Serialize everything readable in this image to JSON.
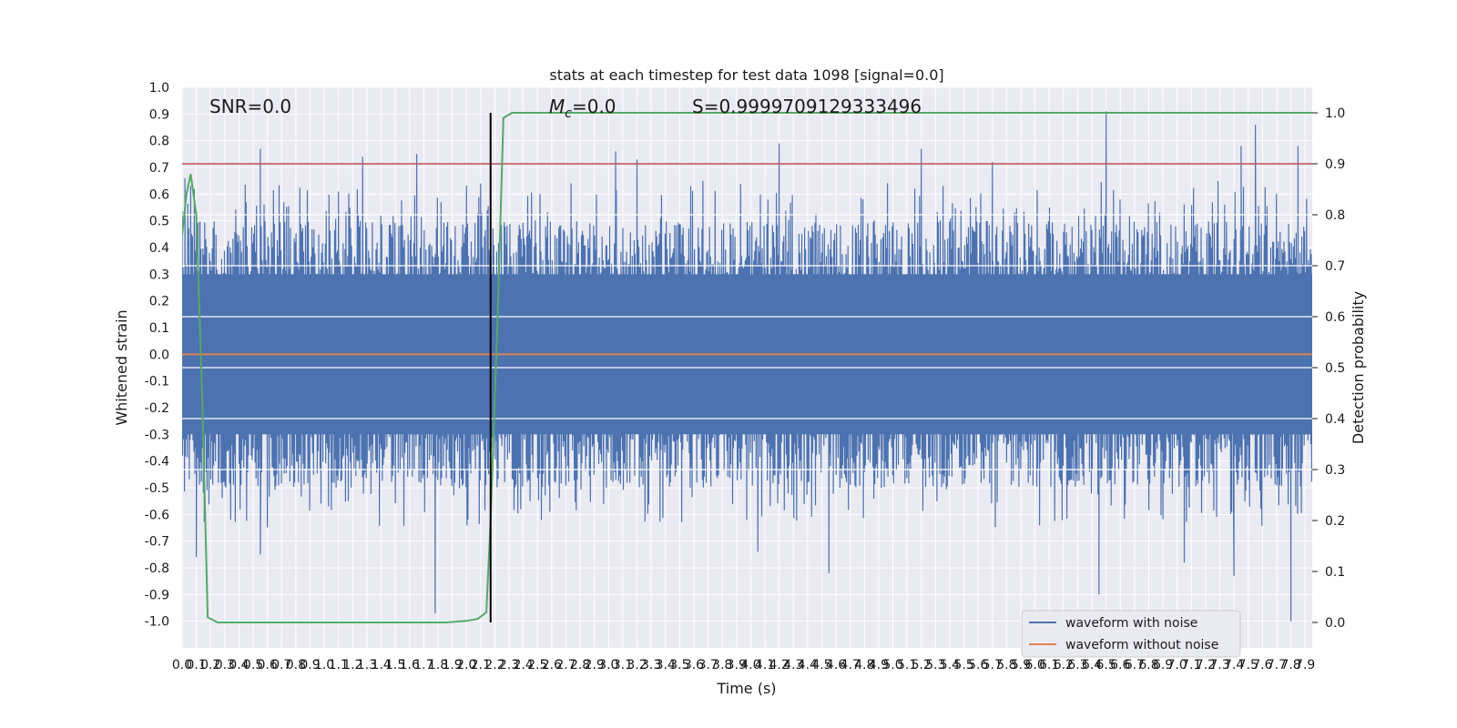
{
  "chart_data": {
    "type": "line",
    "title": "stats at each timestep for test data 1098 [signal=0.0]",
    "xlabel": "Time (s)",
    "ylabel": "Whitened strain",
    "y2label": "Detection probability",
    "xlim": [
      0.0,
      7.95
    ],
    "ylim": [
      -1.1,
      1.0
    ],
    "y2lim": [
      -0.05,
      1.05
    ],
    "x_ticks": [
      "0.0",
      "0.1",
      "0.2",
      "0.3",
      "0.4",
      "0.5",
      "0.6",
      "0.7",
      "0.8",
      "0.9",
      "1.0",
      "1.1",
      "1.2",
      "1.3",
      "1.4",
      "1.5",
      "1.6",
      "1.7",
      "1.8",
      "1.9",
      "2.0",
      "2.1",
      "2.2",
      "2.3",
      "2.4",
      "2.5",
      "2.6",
      "2.7",
      "2.8",
      "2.9",
      "3.0",
      "3.1",
      "3.2",
      "3.3",
      "3.4",
      "3.5",
      "3.6",
      "3.7",
      "3.8",
      "3.9",
      "4.0",
      "4.1",
      "4.2",
      "4.3",
      "4.4",
      "4.5",
      "4.6",
      "4.7",
      "4.8",
      "4.9",
      "5.0",
      "5.1",
      "5.2",
      "5.3",
      "5.4",
      "5.5",
      "5.6",
      "5.7",
      "5.8",
      "5.9",
      "6.0",
      "6.1",
      "6.2",
      "6.3",
      "6.4",
      "6.5",
      "6.6",
      "6.7",
      "6.8",
      "6.9",
      "7.0",
      "7.1",
      "7.2",
      "7.3",
      "7.4",
      "7.5",
      "7.6",
      "7.7",
      "7.8",
      "7.9"
    ],
    "y_ticks": [
      "1.0",
      "0.9",
      "0.8",
      "0.7",
      "0.6",
      "0.5",
      "0.4",
      "0.3",
      "0.2",
      "0.1",
      "0.0",
      "-0.1",
      "-0.2",
      "-0.3",
      "-0.4",
      "-0.5",
      "-0.6",
      "-0.7",
      "-0.8",
      "-0.9",
      "-1.0"
    ],
    "y2_ticks": [
      "1.0",
      "0.9",
      "0.8",
      "0.7",
      "0.6",
      "0.5",
      "0.4",
      "0.3",
      "0.2",
      "0.1",
      "0.0"
    ],
    "grid": true,
    "legend_position": "lower-right",
    "annotations": {
      "snr": "SNR=0.0",
      "mc_symbol": "M",
      "mc_sub": "c",
      "mc_value": "=0.0",
      "s": "S=0.9999709129333496"
    },
    "threshold": {
      "axis": "y2",
      "value": 0.9,
      "color": "#c44e52"
    },
    "marker_line": {
      "x": 2.17,
      "y2_range": [
        0.0,
        1.0
      ],
      "color": "#000000"
    },
    "series": [
      {
        "name": "waveform with noise",
        "axis": "y",
        "color": "#4c72b0",
        "style": "dense-noise",
        "envelope": {
          "typical_upper": 0.45,
          "typical_lower": -0.45
        },
        "peaks": [
          {
            "x": 0.02,
            "y": 0.66
          },
          {
            "x": 0.06,
            "y": 0.63
          },
          {
            "x": 0.55,
            "y": 0.77
          },
          {
            "x": 1.27,
            "y": 0.74
          },
          {
            "x": 1.65,
            "y": 0.75
          },
          {
            "x": 2.1,
            "y": 0.64
          },
          {
            "x": 3.05,
            "y": 0.76
          },
          {
            "x": 3.2,
            "y": 0.73
          },
          {
            "x": 4.2,
            "y": 0.79
          },
          {
            "x": 5.2,
            "y": 0.77
          },
          {
            "x": 5.7,
            "y": 0.72
          },
          {
            "x": 6.5,
            "y": 0.91
          },
          {
            "x": 7.45,
            "y": 0.78
          },
          {
            "x": 7.55,
            "y": 0.86
          },
          {
            "x": 7.85,
            "y": 0.78
          }
        ],
        "troughs": [
          {
            "x": 0.1,
            "y": -0.76
          },
          {
            "x": 0.55,
            "y": -0.75
          },
          {
            "x": 1.78,
            "y": -0.97
          },
          {
            "x": 4.05,
            "y": -0.74
          },
          {
            "x": 4.55,
            "y": -0.82
          },
          {
            "x": 6.45,
            "y": -0.9
          },
          {
            "x": 7.05,
            "y": -0.78
          },
          {
            "x": 7.4,
            "y": -0.83
          },
          {
            "x": 7.8,
            "y": -1.0
          }
        ]
      },
      {
        "name": "waveform without noise",
        "axis": "y",
        "color": "#dd8452",
        "x": [
          0.0,
          7.95
        ],
        "y": [
          0.0,
          0.0
        ]
      },
      {
        "name": "",
        "axis": "y2",
        "color": "#55a868",
        "x": [
          0.0,
          0.03,
          0.06,
          0.1,
          0.14,
          0.18,
          0.25,
          0.5,
          1.0,
          1.5,
          1.86,
          2.0,
          2.08,
          2.14,
          2.17,
          2.22,
          2.26,
          2.32,
          2.5,
          3.0,
          4.0,
          5.0,
          6.0,
          7.0,
          7.95
        ],
        "y": [
          0.76,
          0.84,
          0.88,
          0.8,
          0.45,
          0.01,
          0.0,
          0.0,
          0.0,
          0.0,
          0.0,
          0.003,
          0.007,
          0.02,
          0.2,
          0.6,
          0.99,
          1.0,
          1.0,
          1.0,
          1.0,
          1.0,
          1.0,
          1.0,
          1.0
        ]
      }
    ]
  }
}
